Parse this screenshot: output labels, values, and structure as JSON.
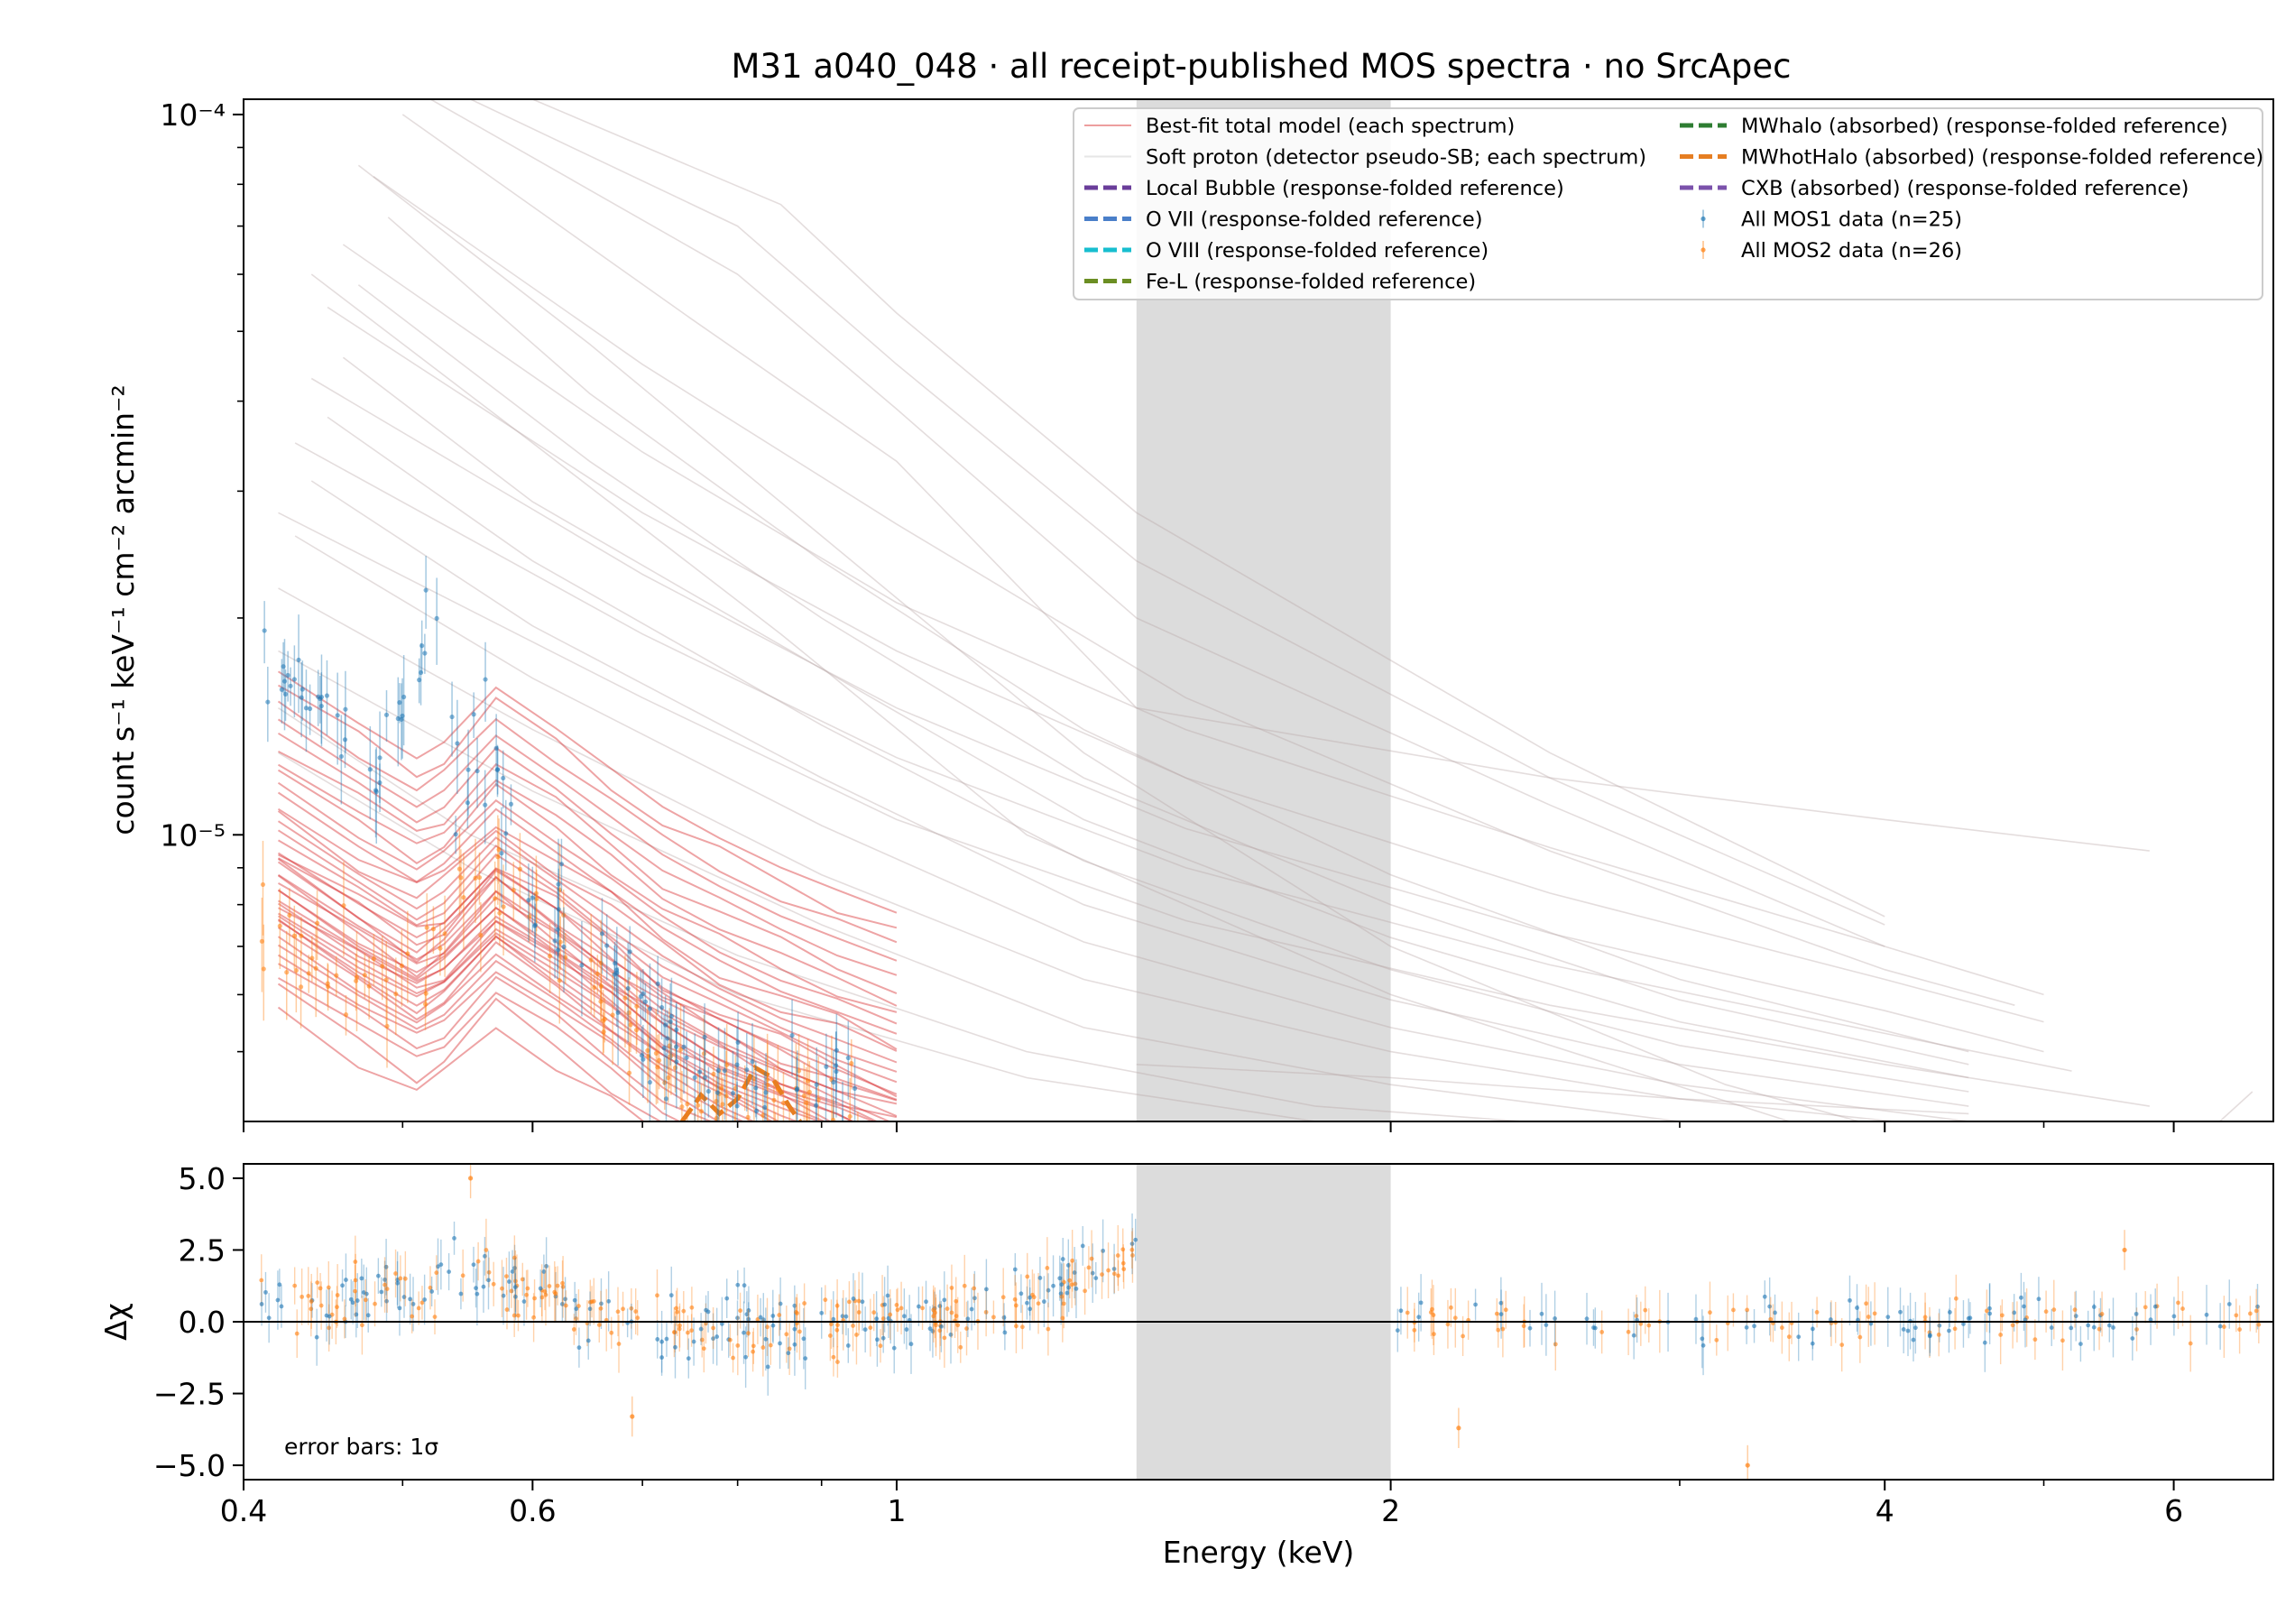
{
  "figure": {
    "title": "M31 a040_048 · all receipt-published MOS spectra · no SrcApec"
  },
  "legend": {
    "items": [
      {
        "key": "best_fit",
        "label": "Best-fit total model (each spectrum)",
        "color": "#d62728",
        "style": "thin-line"
      },
      {
        "key": "soft_proton",
        "label": "Soft proton (detector pseudo-SB; each spectrum)",
        "color": "#c8c8c8",
        "style": "thin-line"
      },
      {
        "key": "local_bubble",
        "label": "Local Bubble (response-folded reference)",
        "color": "#6a3d9a",
        "style": "dashed"
      },
      {
        "key": "o7",
        "label": "O VII (response-folded reference)",
        "color": "#4a7fc9",
        "style": "dashed"
      },
      {
        "key": "o8",
        "label": "O VIII (response-folded reference)",
        "color": "#17becf",
        "style": "dashed"
      },
      {
        "key": "fel",
        "label": "Fe-L (response-folded reference)",
        "color": "#6b8e23",
        "style": "dashed"
      },
      {
        "key": "mwhalo",
        "label": "MWhalo (absorbed) (response-folded reference)",
        "color": "#2e7d32",
        "style": "dashed"
      },
      {
        "key": "mwhothalo",
        "label": "MWhotHalo (absorbed) (response-folded reference)",
        "color": "#e67e22",
        "style": "dashed"
      },
      {
        "key": "cxb",
        "label": "CXB (absorbed) (response-folded reference)",
        "color": "#7b52ab",
        "style": "dashed"
      },
      {
        "key": "mos1",
        "label": "All MOS1 data (n=25)",
        "color": "#1f77b4",
        "style": "errorbar"
      },
      {
        "key": "mos2",
        "label": "All MOS2 data (n=26)",
        "color": "#ff7f0e",
        "style": "errorbar"
      }
    ]
  },
  "chart_data": [
    {
      "type": "line",
      "panel": "spectrum",
      "ylabel": "count s⁻¹ keV⁻¹ cm⁻² arcmin⁻²",
      "xlabel": "",
      "xscale": "log",
      "yscale": "log",
      "xlim": [
        0.4,
        6.9
      ],
      "ylim": [
        4e-06,
        0.000105
      ],
      "y_ticks": [
        {
          "value": 1e-05,
          "label": "10⁻⁵"
        },
        {
          "value": 0.0001,
          "label": "10⁻⁴"
        }
      ],
      "excluded_band": [
        1.4,
        2.0
      ],
      "excluded_band_color": "#dcdcdc",
      "grid": false,
      "legend_position": "top-right",
      "best_fit_template": {
        "x": [
          0.42,
          0.47,
          0.51,
          0.53,
          0.57,
          0.62,
          0.67,
          0.72,
          0.78,
          0.85,
          0.92,
          1.0
        ],
        "y": [
          8e-06,
          6.8e-06,
          6.1e-06,
          6.4e-06,
          7.6e-06,
          6.7e-06,
          5.9e-06,
          5.2e-06,
          4.7e-06,
          4.3e-06,
          4e-06,
          3.7e-06
        ],
        "scale_factors": [
          0.72,
          0.76,
          0.8,
          0.83,
          0.86,
          0.88,
          0.9,
          0.92,
          0.94,
          0.95,
          0.97,
          0.98,
          1.0,
          1.01,
          1.02,
          1.04,
          1.05,
          1.07,
          1.08,
          1.1,
          1.12,
          1.14,
          1.16,
          1.18,
          1.2,
          1.23,
          1.26,
          1.3,
          1.34,
          1.38,
          1.42,
          1.47,
          1.52,
          1.58,
          1.65,
          1.72,
          1.8,
          1.9,
          2.0,
          2.1
        ]
      },
      "soft_proton_curves": [
        {
          "x": [
            0.42,
            0.7,
            1.0,
            1.5,
            2.5,
            4.0,
            5.8
          ],
          "y": [
            2.8e-05,
            1.55e-05,
            1.05e-05,
            7.6e-06,
            5.8e-06,
            4.8e-06,
            4.2e-06
          ]
        },
        {
          "x": [
            0.43,
            0.7,
            1.0,
            1.5,
            2.5,
            4.0,
            5.2
          ],
          "y": [
            3.5e-05,
            1.9e-05,
            1.28e-05,
            9e-06,
            6.6e-06,
            5.3e-06,
            4.7e-06
          ]
        },
        {
          "x": [
            0.44,
            0.7,
            1.0,
            1.5,
            2.5,
            4.0,
            5.0
          ],
          "y": [
            4.3e-05,
            2.3e-05,
            1.5e-05,
            1.02e-05,
            7.3e-06,
            5.7e-06,
            5e-06
          ]
        },
        {
          "x": [
            0.45,
            0.7,
            1.0,
            1.5,
            2.5,
            4.0,
            5.0
          ],
          "y": [
            5.4e-05,
            2.8e-05,
            1.8e-05,
            1.2e-05,
            8.3e-06,
            6.3e-06,
            5.5e-06
          ]
        },
        {
          "x": [
            0.46,
            0.7,
            1.0,
            1.5,
            2.5,
            4.0,
            5.0
          ],
          "y": [
            6.6e-05,
            3.4e-05,
            2.1e-05,
            1.4e-05,
            9.6e-06,
            7e-06,
            6e-06
          ]
        },
        {
          "x": [
            0.48,
            0.7,
            1.0,
            1.5,
            2.5,
            4.0,
            4.8
          ],
          "y": [
            8.2e-05,
            4.5e-05,
            2.7e-05,
            1.55e-05,
            9.5e-06,
            6.5e-06,
            5.8e-06
          ]
        },
        {
          "x": [
            0.5,
            0.75,
            1.0,
            1.4,
            2.5,
            4.0,
            5.8
          ],
          "y": [
            0.0001,
            5.2e-05,
            3.3e-05,
            1.5e-05,
            1.2e-05,
            1.05e-05,
            9.5e-06
          ]
        },
        {
          "x": [
            0.52,
            0.8,
            1.0,
            1.4,
            2.5,
            4.0
          ],
          "y": [
            0.000105,
            6e-05,
            3.9e-05,
            2e-05,
            1.1e-05,
            7e-06
          ]
        },
        {
          "x": [
            0.55,
            0.8,
            1.0,
            1.4,
            2.5,
            4.0
          ],
          "y": [
            0.000105,
            7e-05,
            4.5e-05,
            2.4e-05,
            1.2e-05,
            7.5e-06
          ]
        },
        {
          "x": [
            0.6,
            0.85,
            1.0,
            1.4,
            2.5,
            4.0
          ],
          "y": [
            0.000105,
            7.5e-05,
            5.3e-05,
            2.8e-05,
            1.3e-05,
            7.7e-06
          ]
        },
        {
          "x": [
            0.42,
            0.6,
            0.9,
            1.3,
            2.0,
            3.0,
            4.5
          ],
          "y": [
            2.2e-05,
            1.4e-05,
            8.8e-06,
            6.3e-06,
            5e-06,
            4.3e-06,
            3.9e-06
          ]
        },
        {
          "x": [
            0.42,
            0.6,
            0.9,
            1.3,
            2.0,
            3.0,
            4.5
          ],
          "y": [
            1.8e-05,
            1.15e-05,
            7.5e-06,
            5.4e-06,
            4.5e-06,
            4e-06,
            3.8e-06
          ]
        },
        {
          "x": [
            0.43,
            0.6,
            0.9,
            1.3,
            2.0,
            3.0,
            4.5
          ],
          "y": [
            2.6e-05,
            1.65e-05,
            1.03e-05,
            7.1e-06,
            5.4e-06,
            4.5e-06,
            4e-06
          ]
        },
        {
          "x": [
            0.44,
            0.6,
            0.9,
            1.3,
            2.0,
            3.0,
            4.5
          ],
          "y": [
            3.1e-05,
            1.95e-05,
            1.2e-05,
            8e-06,
            5.9e-06,
            4.8e-06,
            4.2e-06
          ]
        },
        {
          "x": [
            0.45,
            0.6,
            0.9,
            1.3,
            2.0,
            3.0,
            4.5
          ],
          "y": [
            3.8e-05,
            2.4e-05,
            1.42e-05,
            9.2e-06,
            6.5e-06,
            5.1e-06,
            4.4e-06
          ]
        },
        {
          "x": [
            0.46,
            0.6,
            0.9,
            1.3,
            2.0,
            3.0,
            4.5
          ],
          "y": [
            4.6e-05,
            2.9e-05,
            1.7e-05,
            1.05e-05,
            7.2e-06,
            5.5e-06,
            4.6e-06
          ]
        },
        {
          "x": [
            0.47,
            0.65,
            0.9,
            1.3,
            2.0,
            3.0,
            4.5
          ],
          "y": [
            5.8e-05,
            3.3e-05,
            2e-05,
            1.2e-05,
            8e-06,
            5.9e-06,
            4.8e-06
          ]
        },
        {
          "x": [
            0.49,
            0.65,
            0.9,
            1.3,
            2.0,
            3.0,
            4.5
          ],
          "y": [
            7.2e-05,
            4.1e-05,
            2.4e-05,
            1.4e-05,
            8.8e-06,
            6.3e-06,
            5e-06
          ]
        },
        {
          "x": [
            0.42,
            0.55,
            0.8,
            1.2,
            1.8,
            2.8,
            4.4
          ],
          "y": [
            1.5e-05,
            1e-05,
            6.8e-06,
            5e-06,
            4.2e-06,
            3.9e-06,
            3.7e-06
          ]
        },
        {
          "x": [
            0.42,
            0.55,
            0.8,
            1.2,
            1.8,
            2.8
          ],
          "y": [
            1.3e-05,
            9e-06,
            6e-06,
            4.6e-06,
            4e-06,
            3.8e-06
          ]
        },
        {
          "x": [
            0.44,
            0.6,
            0.85,
            1.2,
            2.0,
            3.5,
            6.5
          ],
          "y": [
            6e-05,
            3.5e-05,
            1.9e-05,
            1e-05,
            6e-06,
            4e-06,
            3e-06
          ]
        },
        {
          "x": [
            0.47,
            0.65,
            0.9,
            1.3,
            2.0,
            3.2,
            5.5
          ],
          "y": [
            8.5e-05,
            4.8e-05,
            2.6e-05,
            1.3e-05,
            7e-06,
            4.5e-06,
            3.2e-06
          ]
        },
        {
          "x": [
            1.4,
            2.0,
            3.0,
            4.5
          ],
          "y": [
            4.8e-06,
            4.6e-06,
            4.3e-06,
            4.1e-06
          ]
        },
        {
          "x": [
            6.0,
            6.7
          ],
          "y": [
            3.5e-06,
            4.4e-06
          ]
        }
      ],
      "mwhothalo_curve": {
        "x": [
          0.74,
          0.76,
          0.78,
          0.8,
          0.82,
          0.84,
          0.86,
          0.88
        ],
        "y": [
          4e-06,
          4.35e-06,
          4.1e-06,
          4.3e-06,
          4.75e-06,
          4.6e-06,
          4.2e-06,
          3.9e-06
        ]
      },
      "data_points": {
        "mos1": {
          "x": [
            0.43,
            0.46,
            0.48,
            0.5,
            0.52,
            0.54,
            0.56,
            0.57,
            0.58,
            0.6,
            0.62,
            0.64,
            0.66,
            0.68,
            0.7,
            0.72,
            0.75,
            0.78,
            0.82,
            0.86,
            0.9,
            1.4
          ],
          "y": [
            1.6e-05,
            1.45e-05,
            1.2e-05,
            1.45e-05,
            2.1e-05,
            1.1e-05,
            1.5e-05,
            1.3e-05,
            9e-06,
            8.5e-06,
            8e-06,
            7.2e-06,
            6.8e-06,
            6.2e-06,
            5.6e-06,
            5.1e-06,
            4.9e-06,
            4.9e-06,
            4.6e-06,
            4.6e-06,
            4.3e-06,
            4.3e-06
          ]
        },
        "mos2": {
          "x": [
            0.41,
            0.44,
            0.46,
            0.49,
            0.52,
            0.55,
            0.57,
            0.59,
            0.61,
            0.63,
            0.66,
            0.69,
            0.72,
            0.75,
            0.78,
            0.82,
            0.86
          ],
          "y": [
            8e-06,
            7e-06,
            6.5e-06,
            6.2e-06,
            6.8e-06,
            8.5e-06,
            9.5e-06,
            8.8e-06,
            7.5e-06,
            6.9e-06,
            6e-06,
            5.3e-06,
            4.8e-06,
            4.4e-06,
            4.2e-06,
            4.1e-06,
            4e-06
          ]
        }
      }
    },
    {
      "type": "scatter",
      "panel": "residuals",
      "xlabel": "Energy (keV)",
      "ylabel": "Δχ",
      "xscale": "log",
      "xlim": [
        0.4,
        6.9
      ],
      "ylim": [
        -5.5,
        5.5
      ],
      "x_ticks": [
        {
          "value": 0.4,
          "label": "0.4"
        },
        {
          "value": 0.6,
          "label": "0.6"
        },
        {
          "value": 1,
          "label": "1"
        },
        {
          "value": 2,
          "label": "2"
        },
        {
          "value": 4,
          "label": "4"
        },
        {
          "value": 6,
          "label": "6"
        }
      ],
      "y_ticks": [
        {
          "value": 5.0,
          "label": "5.0"
        },
        {
          "value": 2.5,
          "label": "2.5"
        },
        {
          "value": 0.0,
          "label": "0.0"
        },
        {
          "value": -2.5,
          "label": "−2.5"
        },
        {
          "value": -5.0,
          "label": "−5.0"
        }
      ],
      "excluded_band": [
        1.4,
        2.0
      ],
      "reference_line": 0,
      "annotation": "error bars: 1σ",
      "trend": {
        "x": [
          0.4,
          0.5,
          0.55,
          0.6,
          0.7,
          0.8,
          0.9,
          1.0,
          1.1,
          1.2,
          1.3,
          1.4,
          2.0,
          3.0,
          5.0,
          6.9
        ],
        "y": [
          0.5,
          0.9,
          1.6,
          1.0,
          0.0,
          -0.3,
          -0.1,
          0.1,
          0.3,
          0.8,
          1.6,
          2.1,
          0.1,
          -0.2,
          0.1,
          0.0
        ]
      },
      "outliers": [
        {
          "x": 0.55,
          "y": 5.0
        },
        {
          "x": 0.69,
          "y": -3.3
        },
        {
          "x": 2.2,
          "y": -3.7
        },
        {
          "x": 3.3,
          "y": -5.0
        },
        {
          "x": 5.6,
          "y": 2.5
        }
      ]
    }
  ]
}
